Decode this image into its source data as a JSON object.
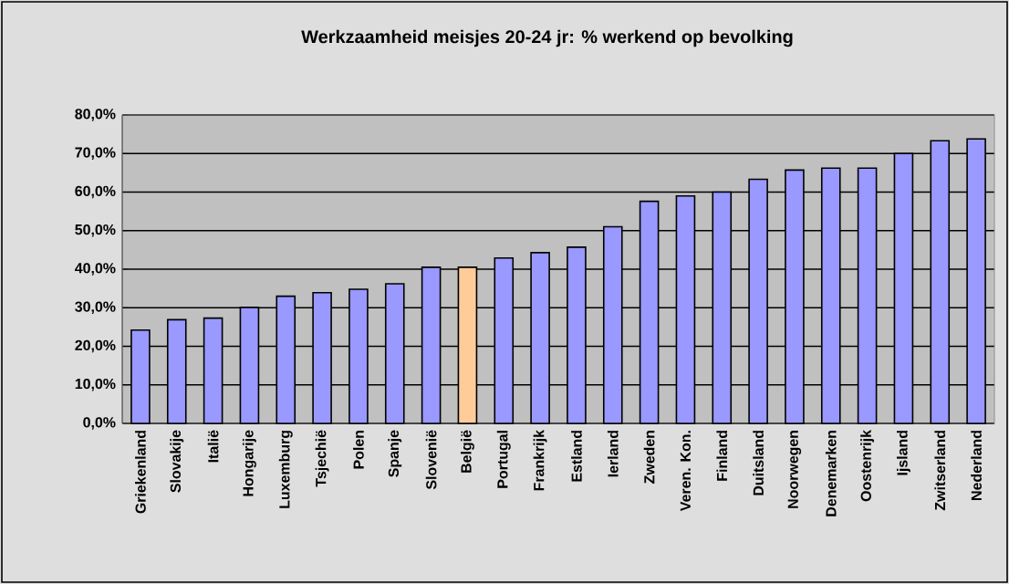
{
  "chart_data": {
    "type": "bar",
    "title": "Werkzaamheid meisjes 20-24 jr: % werkend op bevolking",
    "categories": [
      "Griekenland",
      "Slovakije",
      "Italië",
      "Hongarije",
      "Luxemburg",
      "Tsjechië",
      "Polen",
      "Spanje",
      "Slovenië",
      "België",
      "Portugal",
      "Frankrijk",
      "Estland",
      "Ierland",
      "Zweden",
      "Veren. Kon.",
      "Finland",
      "Duitsland",
      "Noorwegen",
      "Denemarken",
      "Oostenrijk",
      "Ijsland",
      "Zwitserland",
      "Nederland"
    ],
    "values": [
      24.2,
      26.9,
      27.3,
      30.1,
      33.0,
      33.9,
      34.8,
      36.2,
      40.5,
      40.5,
      42.9,
      44.3,
      45.7,
      51.0,
      57.6,
      59.0,
      60.0,
      63.3,
      65.7,
      66.2,
      66.2,
      70.0,
      73.3,
      73.8
    ],
    "colors": [
      "#9999ff",
      "#9999ff",
      "#9999ff",
      "#9999ff",
      "#9999ff",
      "#9999ff",
      "#9999ff",
      "#9999ff",
      "#9999ff",
      "#ffcc99",
      "#9999ff",
      "#9999ff",
      "#9999ff",
      "#9999ff",
      "#9999ff",
      "#9999ff",
      "#9999ff",
      "#9999ff",
      "#9999ff",
      "#9999ff",
      "#9999ff",
      "#9999ff",
      "#9999ff",
      "#9999ff"
    ],
    "ylim": [
      0,
      80
    ],
    "yticks": [
      {
        "value": 0,
        "label": "0,0%"
      },
      {
        "value": 10,
        "label": "10,0%"
      },
      {
        "value": 20,
        "label": "20,0%"
      },
      {
        "value": 30,
        "label": "30,0%"
      },
      {
        "value": 40,
        "label": "40,0%"
      },
      {
        "value": 50,
        "label": "50,0%"
      },
      {
        "value": 60,
        "label": "60,0%"
      },
      {
        "value": 70,
        "label": "70,0%"
      },
      {
        "value": 80,
        "label": "80,0%"
      }
    ],
    "grid": "y"
  }
}
